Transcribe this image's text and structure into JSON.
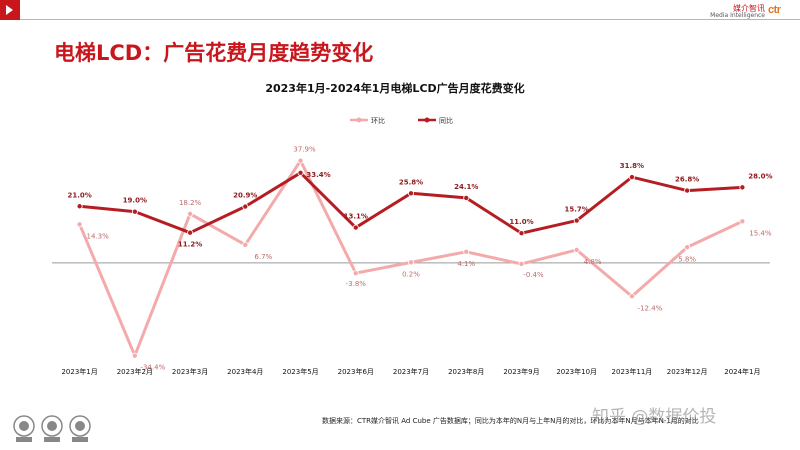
{
  "header": {
    "brand_cn": "媒介智讯",
    "brand_en": "Media Intelligence",
    "brand_logo": "ctr"
  },
  "page_title": "电梯LCD：广告花费月度趋势变化",
  "footer": {
    "source_note": "数据来源：CTR媒介智讯 Ad Cube 广告数据库；同比为本年的N月与上年N月的对比，环比为本年N月与本年N-1月的对比",
    "watermark": "知乎 @数据价投"
  },
  "colors": {
    "mom": "#f4aaaa",
    "yoy": "#b51d22",
    "baseline": "#9a9a9a",
    "accent": "#c9161d"
  },
  "chart_data": {
    "type": "line",
    "title": "2023年1月-2024年1月电梯LCD广告月度花费变化",
    "categories": [
      "2023年1月",
      "2023年2月",
      "2023年3月",
      "2023年4月",
      "2023年5月",
      "2023年6月",
      "2023年7月",
      "2023年8月",
      "2023年9月",
      "2023年10月",
      "2023年11月",
      "2023年12月",
      "2024年1月"
    ],
    "series": [
      {
        "name": "环比",
        "key": "mom",
        "values": [
          14.3,
          -34.4,
          18.2,
          6.7,
          37.9,
          -3.8,
          0.2,
          4.1,
          -0.4,
          4.8,
          -12.4,
          5.8,
          15.4
        ],
        "labels": [
          "14.3%",
          "-34.4%",
          "18.2%",
          "6.7%",
          "37.9%",
          "-3.8%",
          "0.2%",
          "4.1%",
          "-0.4%",
          "4.8%",
          "-12.4%",
          "5.8%",
          "15.4%"
        ]
      },
      {
        "name": "同比",
        "key": "yoy",
        "values": [
          21.0,
          19.0,
          11.2,
          20.9,
          33.4,
          13.1,
          25.8,
          24.1,
          11.0,
          15.7,
          31.8,
          26.8,
          28.0
        ],
        "labels": [
          "21.0%",
          "19.0%",
          "11.2%",
          "20.9%",
          "33.4%",
          "13.1%",
          "25.8%",
          "24.1%",
          "11.0%",
          "15.7%",
          "31.8%",
          "26.8%",
          "28.0%"
        ]
      }
    ],
    "ylim": [
      -36,
      40
    ],
    "grid": false,
    "zero_line": true,
    "legend_position": "top-center",
    "xlabel": "",
    "ylabel": ""
  }
}
